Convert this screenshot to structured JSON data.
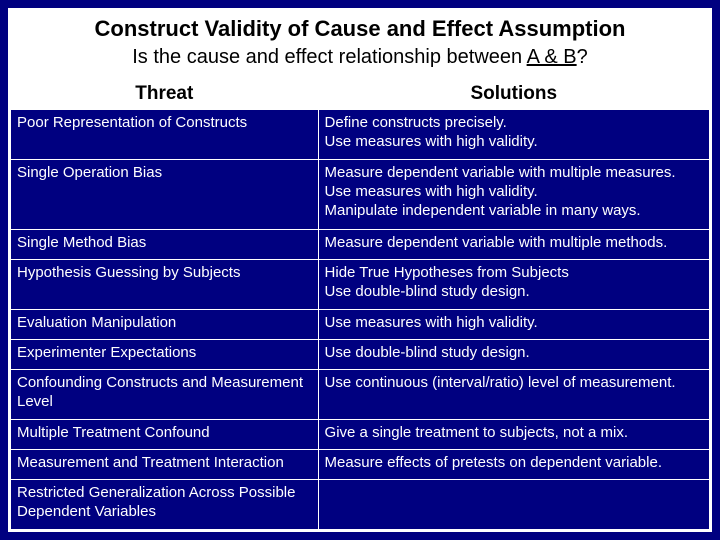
{
  "colors": {
    "background": "#000080",
    "border": "#ffffff",
    "header_bg": "#ffffff",
    "header_text": "#000000",
    "body_text": "#ffffff"
  },
  "typography": {
    "family": "Arial",
    "title_size_pt": 22,
    "subtitle_size_pt": 20,
    "header_size_pt": 19,
    "body_size_pt": 15
  },
  "title": {
    "main": "Construct Validity of Cause and Effect Assumption",
    "sub_prefix": "Is the cause and effect relationship between ",
    "sub_underlined": "A & B",
    "sub_suffix": "?"
  },
  "table": {
    "type": "table",
    "columns": [
      "Threat",
      "Solutions"
    ],
    "col_widths_pct": [
      44,
      56
    ],
    "rows": [
      {
        "threat": "Poor Representation of Constructs",
        "solutions": [
          "Define constructs precisely.",
          "Use measures with high validity."
        ]
      },
      {
        "threat": "Single Operation Bias",
        "solutions": [
          "Measure dependent variable with multiple measures.",
          "Use measures with high validity.",
          "Manipulate independent variable in many ways."
        ]
      },
      {
        "threat": "Single Method Bias",
        "solutions": [
          "Measure dependent variable with multiple methods."
        ]
      },
      {
        "threat": "Hypothesis Guessing by Subjects",
        "solutions": [
          "Hide True Hypotheses from Subjects",
          "Use double-blind study design."
        ]
      },
      {
        "threat": "Evaluation Manipulation",
        "solutions": [
          "Use measures with high validity."
        ]
      },
      {
        "threat": "Experimenter Expectations",
        "solutions": [
          "Use double-blind study design."
        ]
      },
      {
        "threat": "Confounding Constructs and Measurement Level",
        "solutions": [
          "Use continuous (interval/ratio) level of measurement."
        ]
      },
      {
        "threat": "Multiple Treatment Confound",
        "solutions": [
          "Give a single treatment to subjects, not a mix."
        ]
      },
      {
        "threat": "Measurement and Treatment Interaction",
        "solutions": [
          "Measure effects of pretests on dependent variable."
        ]
      },
      {
        "threat": "Restricted Generalization Across Possible Dependent Variables",
        "solutions": [
          ""
        ]
      }
    ]
  }
}
